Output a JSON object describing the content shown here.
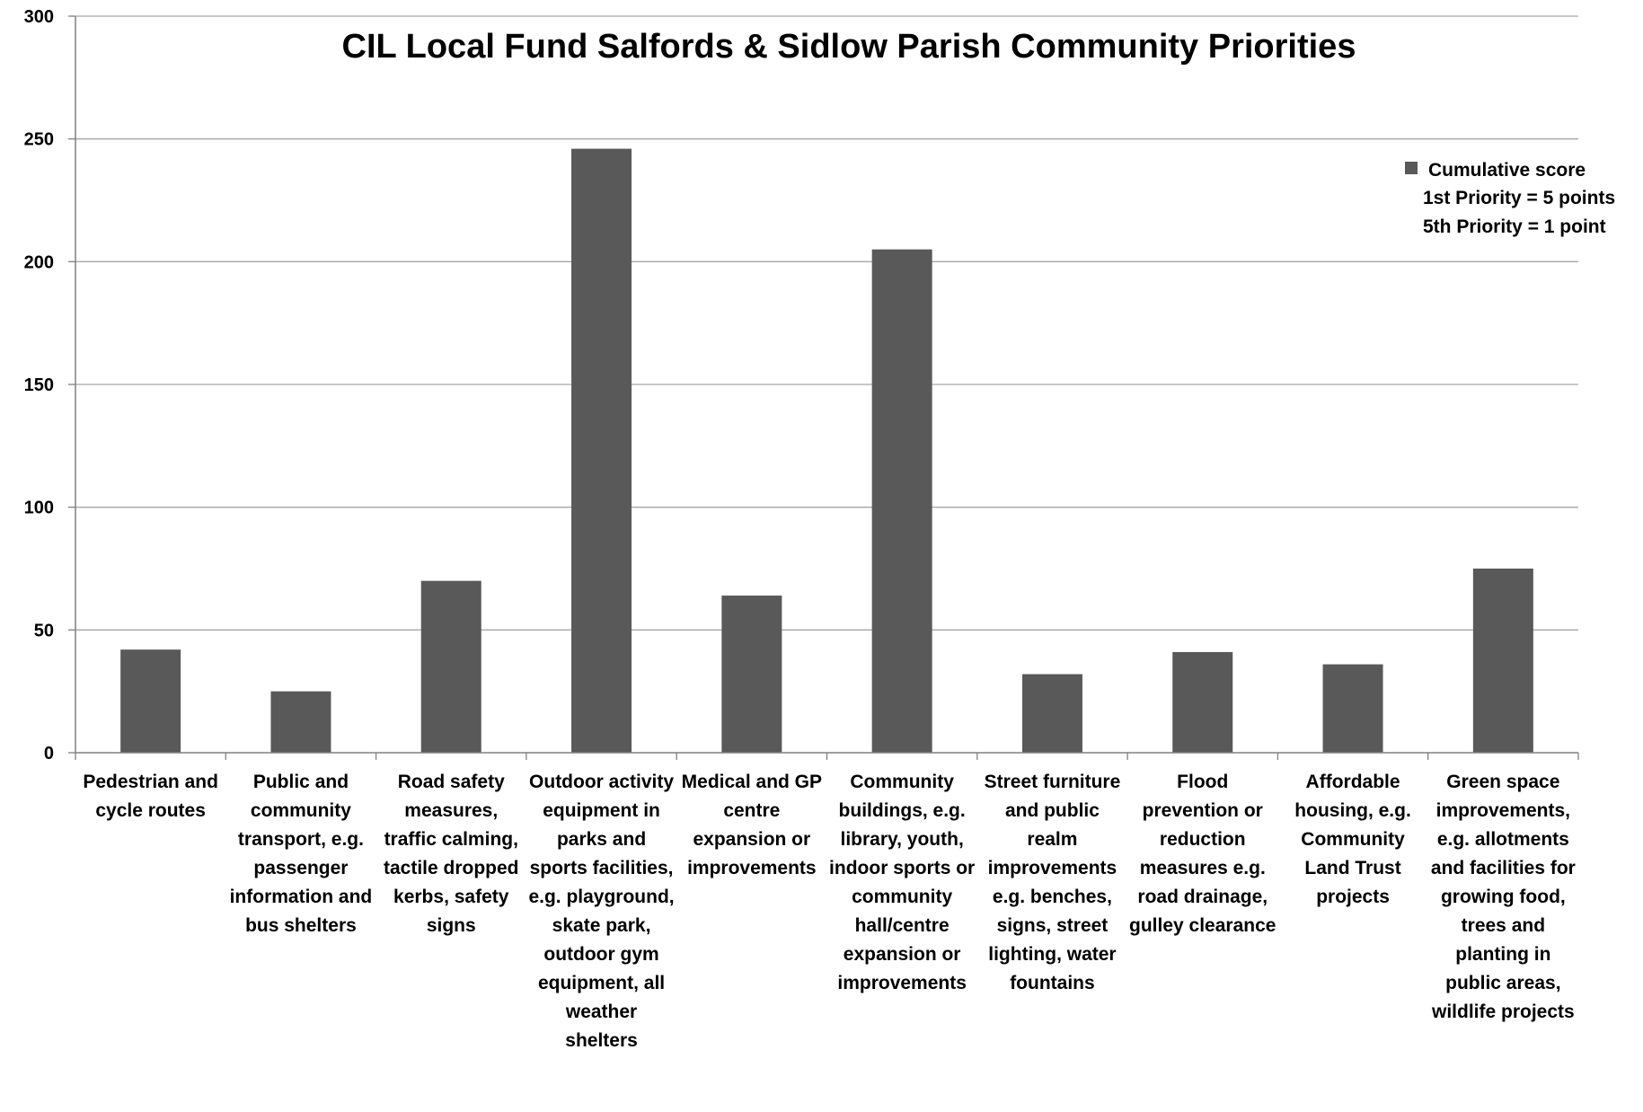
{
  "chart_data": {
    "type": "bar",
    "title": "CIL Local Fund Salfords & Sidlow Parish Community Priorities",
    "xlabel": "",
    "ylabel": "",
    "ylim": [
      0,
      300
    ],
    "yticks": [
      0,
      50,
      100,
      150,
      200,
      250,
      300
    ],
    "grid": true,
    "legend_position": "top-right",
    "colors": {
      "bar": "#595959",
      "grid": "#a6a6a6",
      "axis": "#808080"
    },
    "categories": [
      "Pedestrian and cycle routes",
      "Public and community transport, e.g. passenger information and bus shelters",
      "Road safety measures, traffic calming, tactile dropped kerbs, safety signs",
      "Outdoor activity equipment in parks and sports facilities, e.g. playground, skate park, outdoor gym equipment, all weather shelters",
      "Medical and GP centre expansion or improvements",
      "Community buildings, e.g. library, youth, indoor sports or community hall/centre expansion or improvements",
      "Street furniture and public realm improvements e.g. benches, signs, street lighting, water fountains",
      "Flood prevention or reduction measures e.g. road drainage, gulley clearance",
      "Affordable housing, e.g. Community Land Trust projects",
      "Green space improvements, e.g. allotments and facilities for growing food, trees and planting in public areas, wildlife projects"
    ],
    "series": [
      {
        "name": "Cumulative score",
        "values": [
          42,
          25,
          70,
          246,
          64,
          205,
          32,
          41,
          36,
          75
        ]
      }
    ],
    "legend": {
      "entry": "Cumulative score",
      "notes": [
        "1st Priority = 5 points",
        "5th Priority = 1 point"
      ]
    }
  }
}
